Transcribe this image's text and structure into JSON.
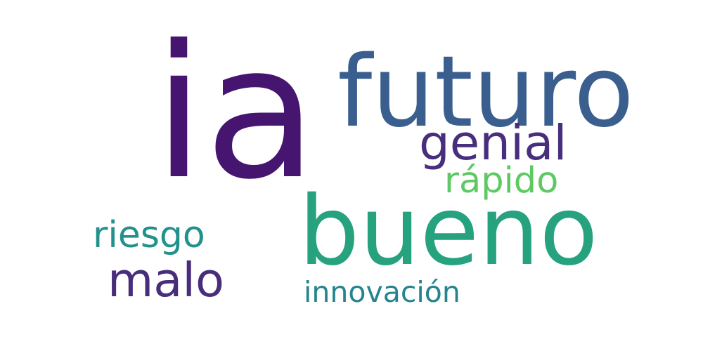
{
  "wordcloud": {
    "words": [
      {
        "text": "ia",
        "color": "#461570"
      },
      {
        "text": "futuro",
        "color": "#3a5f8e"
      },
      {
        "text": "genial",
        "color": "#472f7d"
      },
      {
        "text": "rápido",
        "color": "#5ec962"
      },
      {
        "text": "bueno",
        "color": "#26a27f"
      },
      {
        "text": "riesgo",
        "color": "#21918c"
      },
      {
        "text": "malo",
        "color": "#482d7b"
      },
      {
        "text": "innovación",
        "color": "#25848e"
      }
    ]
  }
}
